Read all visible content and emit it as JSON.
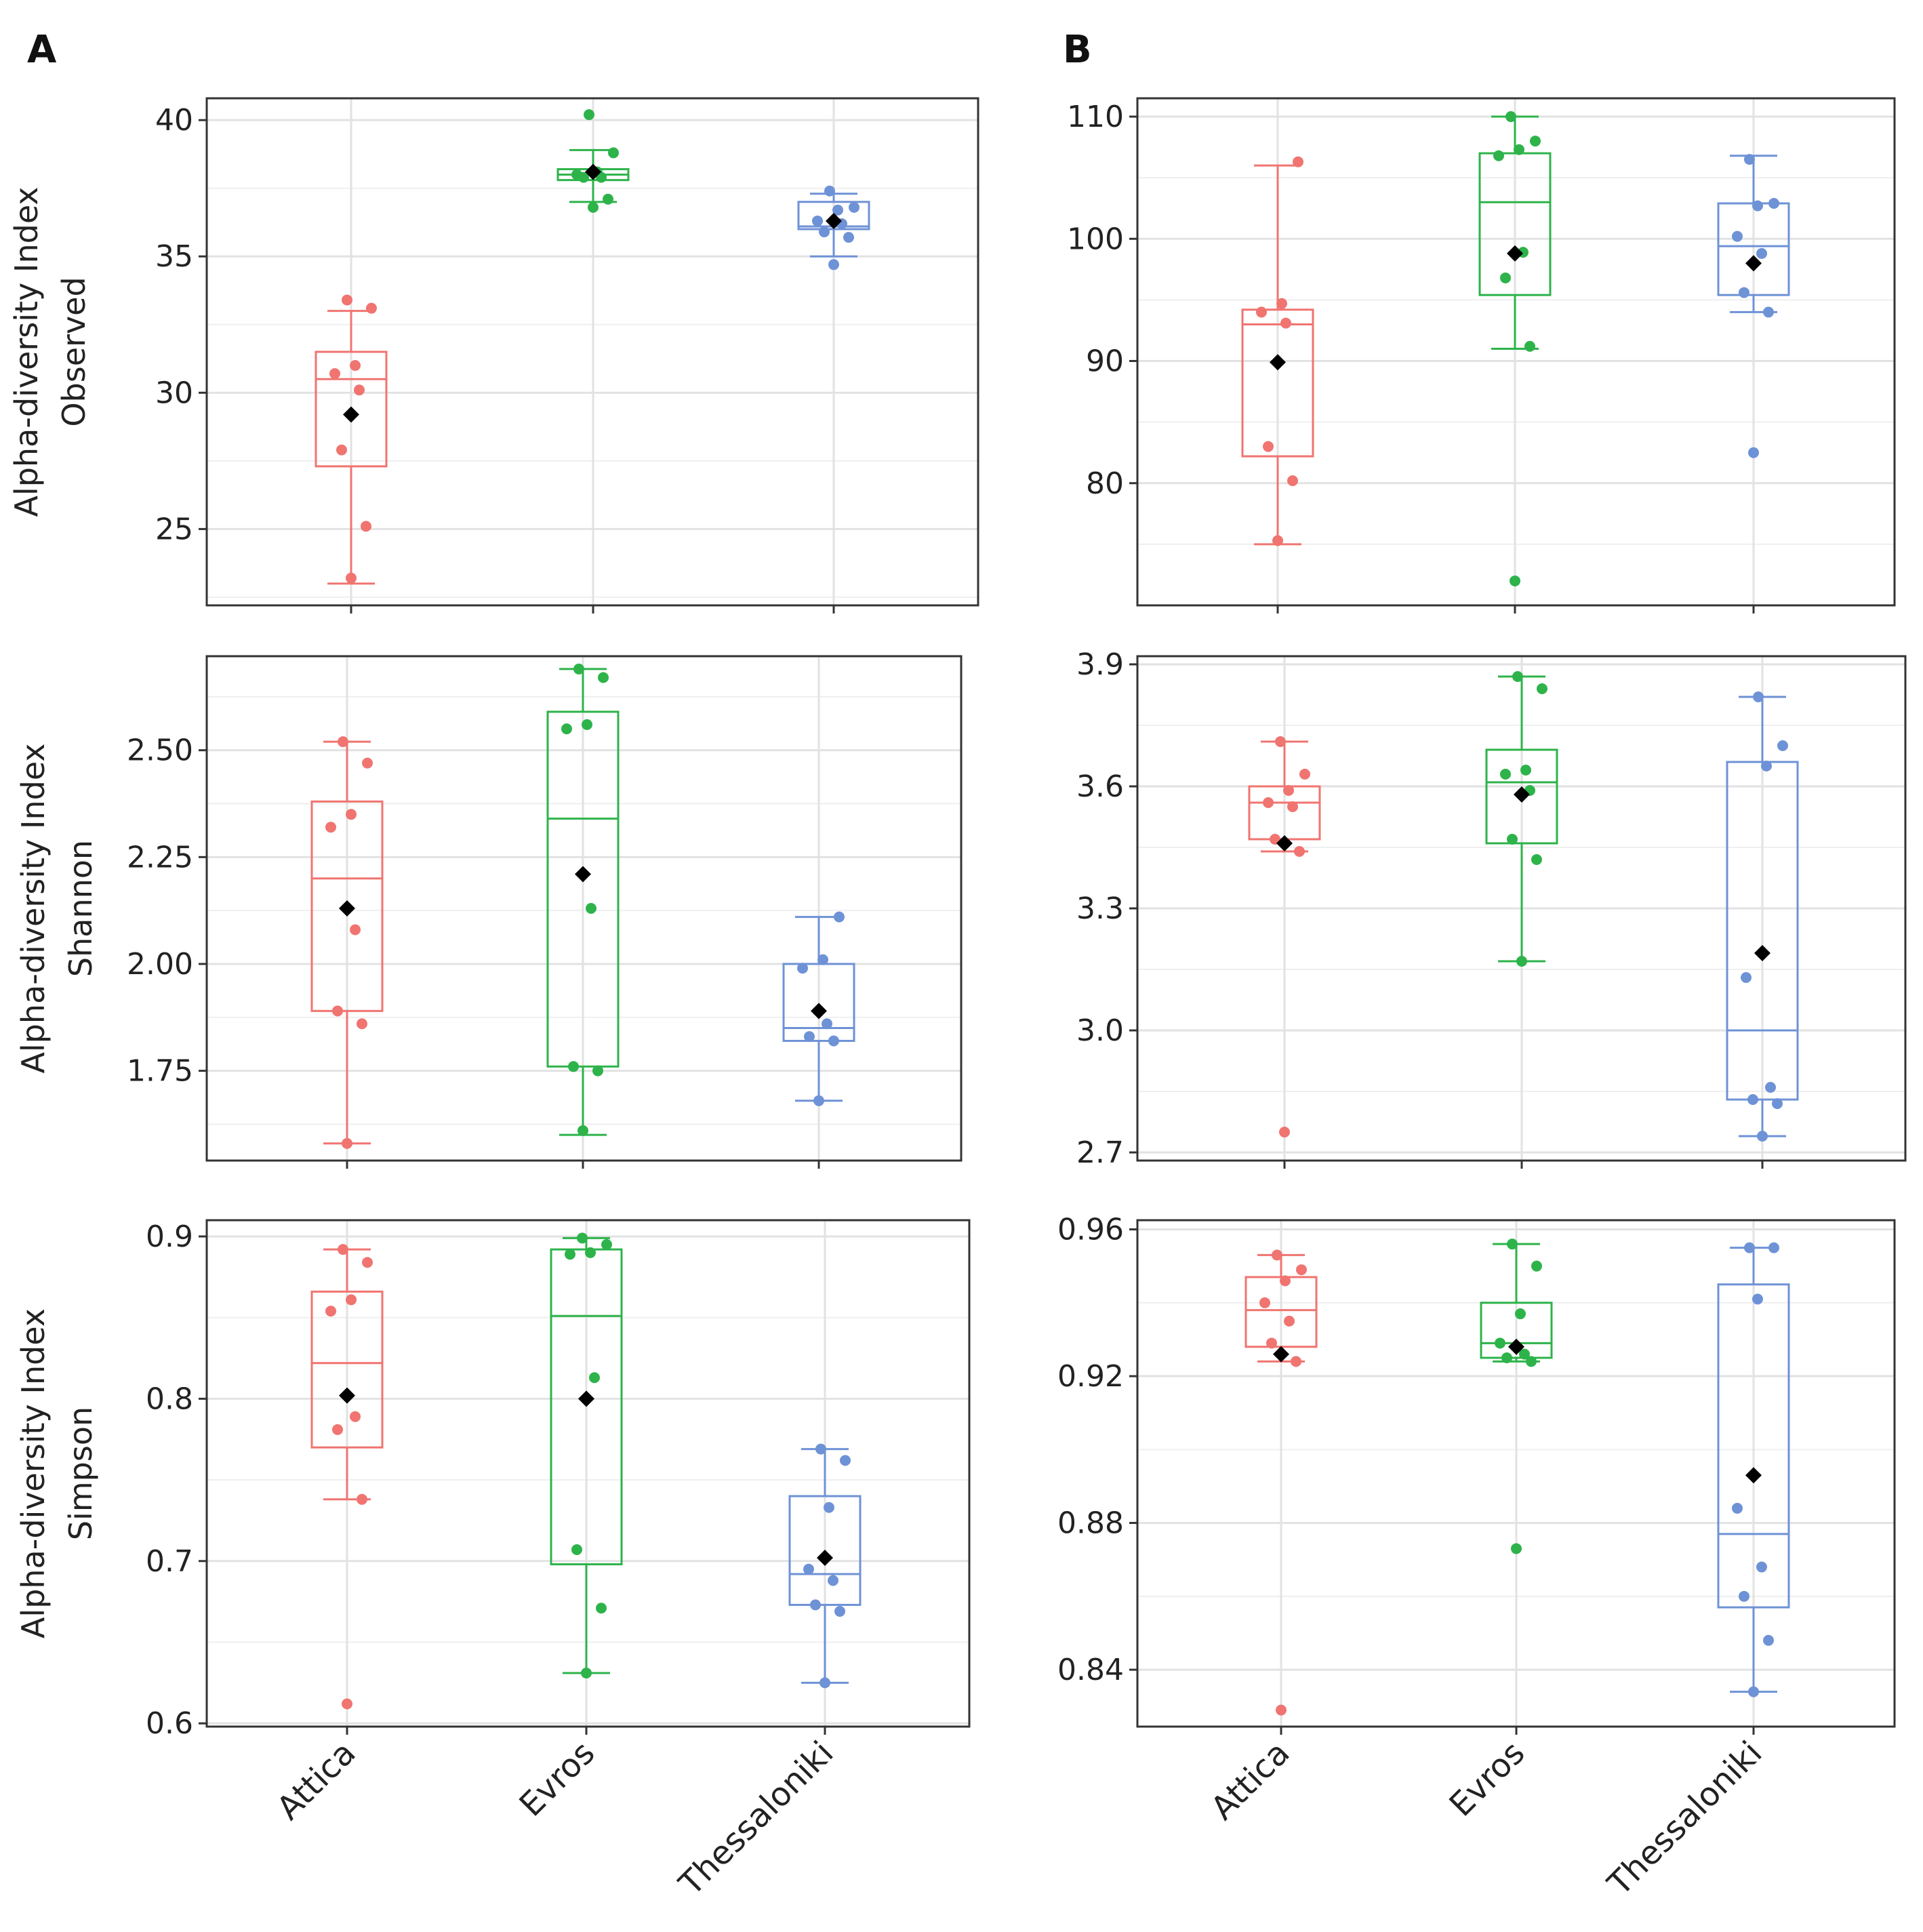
{
  "panel_labels": [
    "A",
    "B"
  ],
  "categories": [
    "Attica",
    "Evros",
    "Thessaloniki"
  ],
  "colors": {
    "Attica": "#F07470",
    "Evros": "#2DB34A",
    "Thessaloniki": "#6E92D6",
    "mean": "#000000"
  },
  "chart_data": [
    {
      "type": "box",
      "panel": "A",
      "ylabel": [
        "Alpha-diversity Index",
        "Observed"
      ],
      "ylim": [
        22.2,
        40.8
      ],
      "yticks": [
        25,
        30,
        35,
        40
      ],
      "ytick_labels": [
        "25",
        "30",
        "35",
        "40"
      ],
      "groups": [
        {
          "name": "Attica",
          "whisker_low": 23.0,
          "q1": 27.3,
          "median": 30.5,
          "q3": 31.5,
          "whisker_high": 33.0,
          "mean": 29.2,
          "points": [
            23.2,
            25.1,
            27.9,
            30.1,
            30.7,
            31.0,
            33.1,
            33.4
          ]
        },
        {
          "name": "Evros",
          "whisker_low": 37.0,
          "q1": 37.8,
          "median": 38.0,
          "q3": 38.2,
          "whisker_high": 38.9,
          "mean": 38.1,
          "points": [
            36.8,
            37.1,
            37.9,
            37.9,
            38.0,
            38.1,
            38.8,
            40.2
          ]
        },
        {
          "name": "Thessaloniki",
          "whisker_low": 35.0,
          "q1": 36.0,
          "median": 36.1,
          "q3": 37.0,
          "whisker_high": 37.3,
          "mean": 36.3,
          "points": [
            34.7,
            35.7,
            35.9,
            36.2,
            36.3,
            36.7,
            36.8,
            37.4
          ]
        }
      ]
    },
    {
      "type": "box",
      "panel": "B",
      "ylabel": [],
      "ylim": [
        70.0,
        111.5
      ],
      "yticks": [
        80,
        90,
        100,
        110
      ],
      "ytick_labels": [
        "80",
        "90",
        "100",
        "110"
      ],
      "groups": [
        {
          "name": "Attica",
          "whisker_low": 75.0,
          "q1": 82.2,
          "median": 93.0,
          "q3": 94.2,
          "whisker_high": 106.0,
          "mean": 89.9,
          "points": [
            75.3,
            80.2,
            83.0,
            93.1,
            94.0,
            94.7,
            106.3
          ]
        },
        {
          "name": "Evros",
          "whisker_low": 91.0,
          "q1": 95.4,
          "median": 103.0,
          "q3": 107.0,
          "whisker_high": 110.0,
          "mean": 98.8,
          "points": [
            72.0,
            91.2,
            96.8,
            98.9,
            106.8,
            107.3,
            108.0,
            110.0
          ]
        },
        {
          "name": "Thessaloniki",
          "whisker_low": 94.0,
          "q1": 95.4,
          "median": 99.4,
          "q3": 102.9,
          "whisker_high": 106.8,
          "mean": 98.0,
          "points": [
            82.5,
            94.0,
            95.6,
            98.8,
            100.2,
            102.7,
            102.9,
            106.5
          ]
        }
      ]
    },
    {
      "type": "box",
      "panel": "A",
      "ylabel": [
        "Alpha-diversity Index",
        "Shannon"
      ],
      "ylim": [
        1.54,
        2.72
      ],
      "yticks": [
        1.75,
        2.0,
        2.25,
        2.5
      ],
      "ytick_labels": [
        "1.75",
        "2.00",
        "2.25",
        "2.50"
      ],
      "groups": [
        {
          "name": "Attica",
          "whisker_low": 1.58,
          "q1": 1.89,
          "median": 2.2,
          "q3": 2.38,
          "whisker_high": 2.52,
          "mean": 2.13,
          "points": [
            1.58,
            1.86,
            1.89,
            2.08,
            2.32,
            2.35,
            2.47,
            2.52
          ]
        },
        {
          "name": "Evros",
          "whisker_low": 1.6,
          "q1": 1.76,
          "median": 2.34,
          "q3": 2.59,
          "whisker_high": 2.69,
          "mean": 2.21,
          "points": [
            1.61,
            1.75,
            1.76,
            2.13,
            2.55,
            2.56,
            2.67,
            2.69
          ]
        },
        {
          "name": "Thessaloniki",
          "whisker_low": 1.68,
          "q1": 1.82,
          "median": 1.85,
          "q3": 2.0,
          "whisker_high": 2.11,
          "mean": 1.89,
          "points": [
            1.68,
            1.82,
            1.83,
            1.86,
            1.99,
            2.01,
            2.11
          ]
        }
      ]
    },
    {
      "type": "box",
      "panel": "B",
      "ylabel": [],
      "ylim": [
        2.68,
        3.92
      ],
      "yticks": [
        2.7,
        3.0,
        3.3,
        3.6,
        3.9
      ],
      "ytick_labels": [
        "2.7",
        "3.0",
        "3.3",
        "3.6",
        "3.9"
      ],
      "groups": [
        {
          "name": "Attica",
          "whisker_low": 3.44,
          "q1": 3.47,
          "median": 3.56,
          "q3": 3.6,
          "whisker_high": 3.71,
          "mean": 3.46,
          "points": [
            2.75,
            3.44,
            3.47,
            3.55,
            3.56,
            3.59,
            3.63,
            3.71
          ]
        },
        {
          "name": "Evros",
          "whisker_low": 3.17,
          "q1": 3.46,
          "median": 3.61,
          "q3": 3.69,
          "whisker_high": 3.87,
          "mean": 3.58,
          "points": [
            3.17,
            3.42,
            3.47,
            3.59,
            3.63,
            3.64,
            3.84,
            3.87
          ]
        },
        {
          "name": "Thessaloniki",
          "whisker_low": 2.74,
          "q1": 2.83,
          "median": 3.0,
          "q3": 3.66,
          "whisker_high": 3.82,
          "mean": 3.19,
          "points": [
            2.74,
            2.82,
            2.83,
            2.86,
            3.13,
            3.65,
            3.7,
            3.82
          ]
        }
      ]
    },
    {
      "type": "box",
      "panel": "A",
      "ylabel": [
        "Alpha-diversity Index",
        "Simpson"
      ],
      "ylim": [
        0.598,
        0.91
      ],
      "yticks": [
        0.6,
        0.7,
        0.8,
        0.9
      ],
      "ytick_labels": [
        "0.6",
        "0.7",
        "0.8",
        "0.9"
      ],
      "groups": [
        {
          "name": "Attica",
          "whisker_low": 0.738,
          "q1": 0.77,
          "median": 0.822,
          "q3": 0.866,
          "whisker_high": 0.892,
          "mean": 0.802,
          "points": [
            0.612,
            0.738,
            0.781,
            0.789,
            0.854,
            0.861,
            0.884,
            0.892
          ]
        },
        {
          "name": "Evros",
          "whisker_low": 0.631,
          "q1": 0.698,
          "median": 0.851,
          "q3": 0.892,
          "whisker_high": 0.899,
          "mean": 0.8,
          "points": [
            0.631,
            0.671,
            0.707,
            0.813,
            0.889,
            0.89,
            0.895,
            0.899
          ]
        },
        {
          "name": "Thessaloniki",
          "whisker_low": 0.625,
          "q1": 0.673,
          "median": 0.692,
          "q3": 0.74,
          "whisker_high": 0.769,
          "mean": 0.702,
          "points": [
            0.625,
            0.669,
            0.673,
            0.688,
            0.695,
            0.733,
            0.762,
            0.769
          ]
        }
      ]
    },
    {
      "type": "box",
      "panel": "B",
      "ylabel": [],
      "ylim": [
        0.8245,
        0.9625
      ],
      "yticks": [
        0.84,
        0.88,
        0.92,
        0.96
      ],
      "ytick_labels": [
        "0.84",
        "0.88",
        "0.92",
        "0.96"
      ],
      "groups": [
        {
          "name": "Attica",
          "whisker_low": 0.924,
          "q1": 0.928,
          "median": 0.938,
          "q3": 0.947,
          "whisker_high": 0.953,
          "mean": 0.926,
          "points": [
            0.829,
            0.924,
            0.929,
            0.935,
            0.94,
            0.946,
            0.949,
            0.953
          ]
        },
        {
          "name": "Evros",
          "whisker_low": 0.924,
          "q1": 0.925,
          "median": 0.929,
          "q3": 0.94,
          "whisker_high": 0.956,
          "mean": 0.928,
          "points": [
            0.873,
            0.924,
            0.925,
            0.926,
            0.929,
            0.937,
            0.95,
            0.956
          ]
        },
        {
          "name": "Thessaloniki",
          "whisker_low": 0.834,
          "q1": 0.857,
          "median": 0.877,
          "q3": 0.945,
          "whisker_high": 0.955,
          "mean": 0.893,
          "points": [
            0.834,
            0.848,
            0.86,
            0.868,
            0.884,
            0.941,
            0.955,
            0.955
          ]
        }
      ]
    }
  ]
}
